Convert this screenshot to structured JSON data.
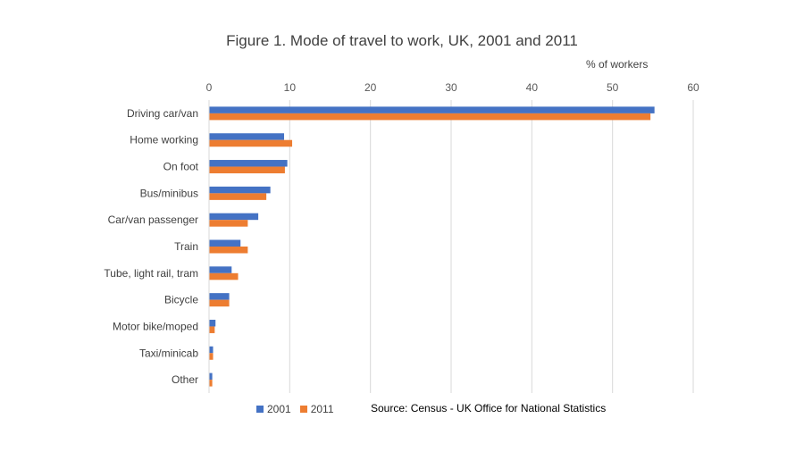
{
  "chart_data": {
    "type": "bar",
    "orientation": "horizontal",
    "title": "Figure 1. Mode of travel to work, UK, 2001 and 2011",
    "xlabel": "% of workers",
    "ylabel": "",
    "xlim": [
      0,
      60
    ],
    "x_ticks": [
      "0",
      "10",
      "20",
      "30",
      "40",
      "50",
      "60"
    ],
    "x_axis_position": "top",
    "grid": true,
    "legend_position": "bottom-left",
    "categories": [
      "Driving car/van",
      "Home working",
      "On foot",
      "Bus/minibus",
      "Car/van passenger",
      "Train",
      "Tube, light rail, tram",
      "Bicycle",
      "Motor bike/moped",
      "Taxi/minicab",
      "Other"
    ],
    "series": [
      {
        "name": "2001",
        "color": "#4472C4",
        "values": [
          55.2,
          9.3,
          9.7,
          7.6,
          6.1,
          3.9,
          2.8,
          2.5,
          0.8,
          0.5,
          0.4
        ]
      },
      {
        "name": "2011",
        "color": "#ED7D31",
        "values": [
          54.7,
          10.3,
          9.4,
          7.1,
          4.8,
          4.8,
          3.6,
          2.5,
          0.7,
          0.5,
          0.4
        ]
      }
    ],
    "source": "Source: Census - UK Office for National Statistics"
  }
}
